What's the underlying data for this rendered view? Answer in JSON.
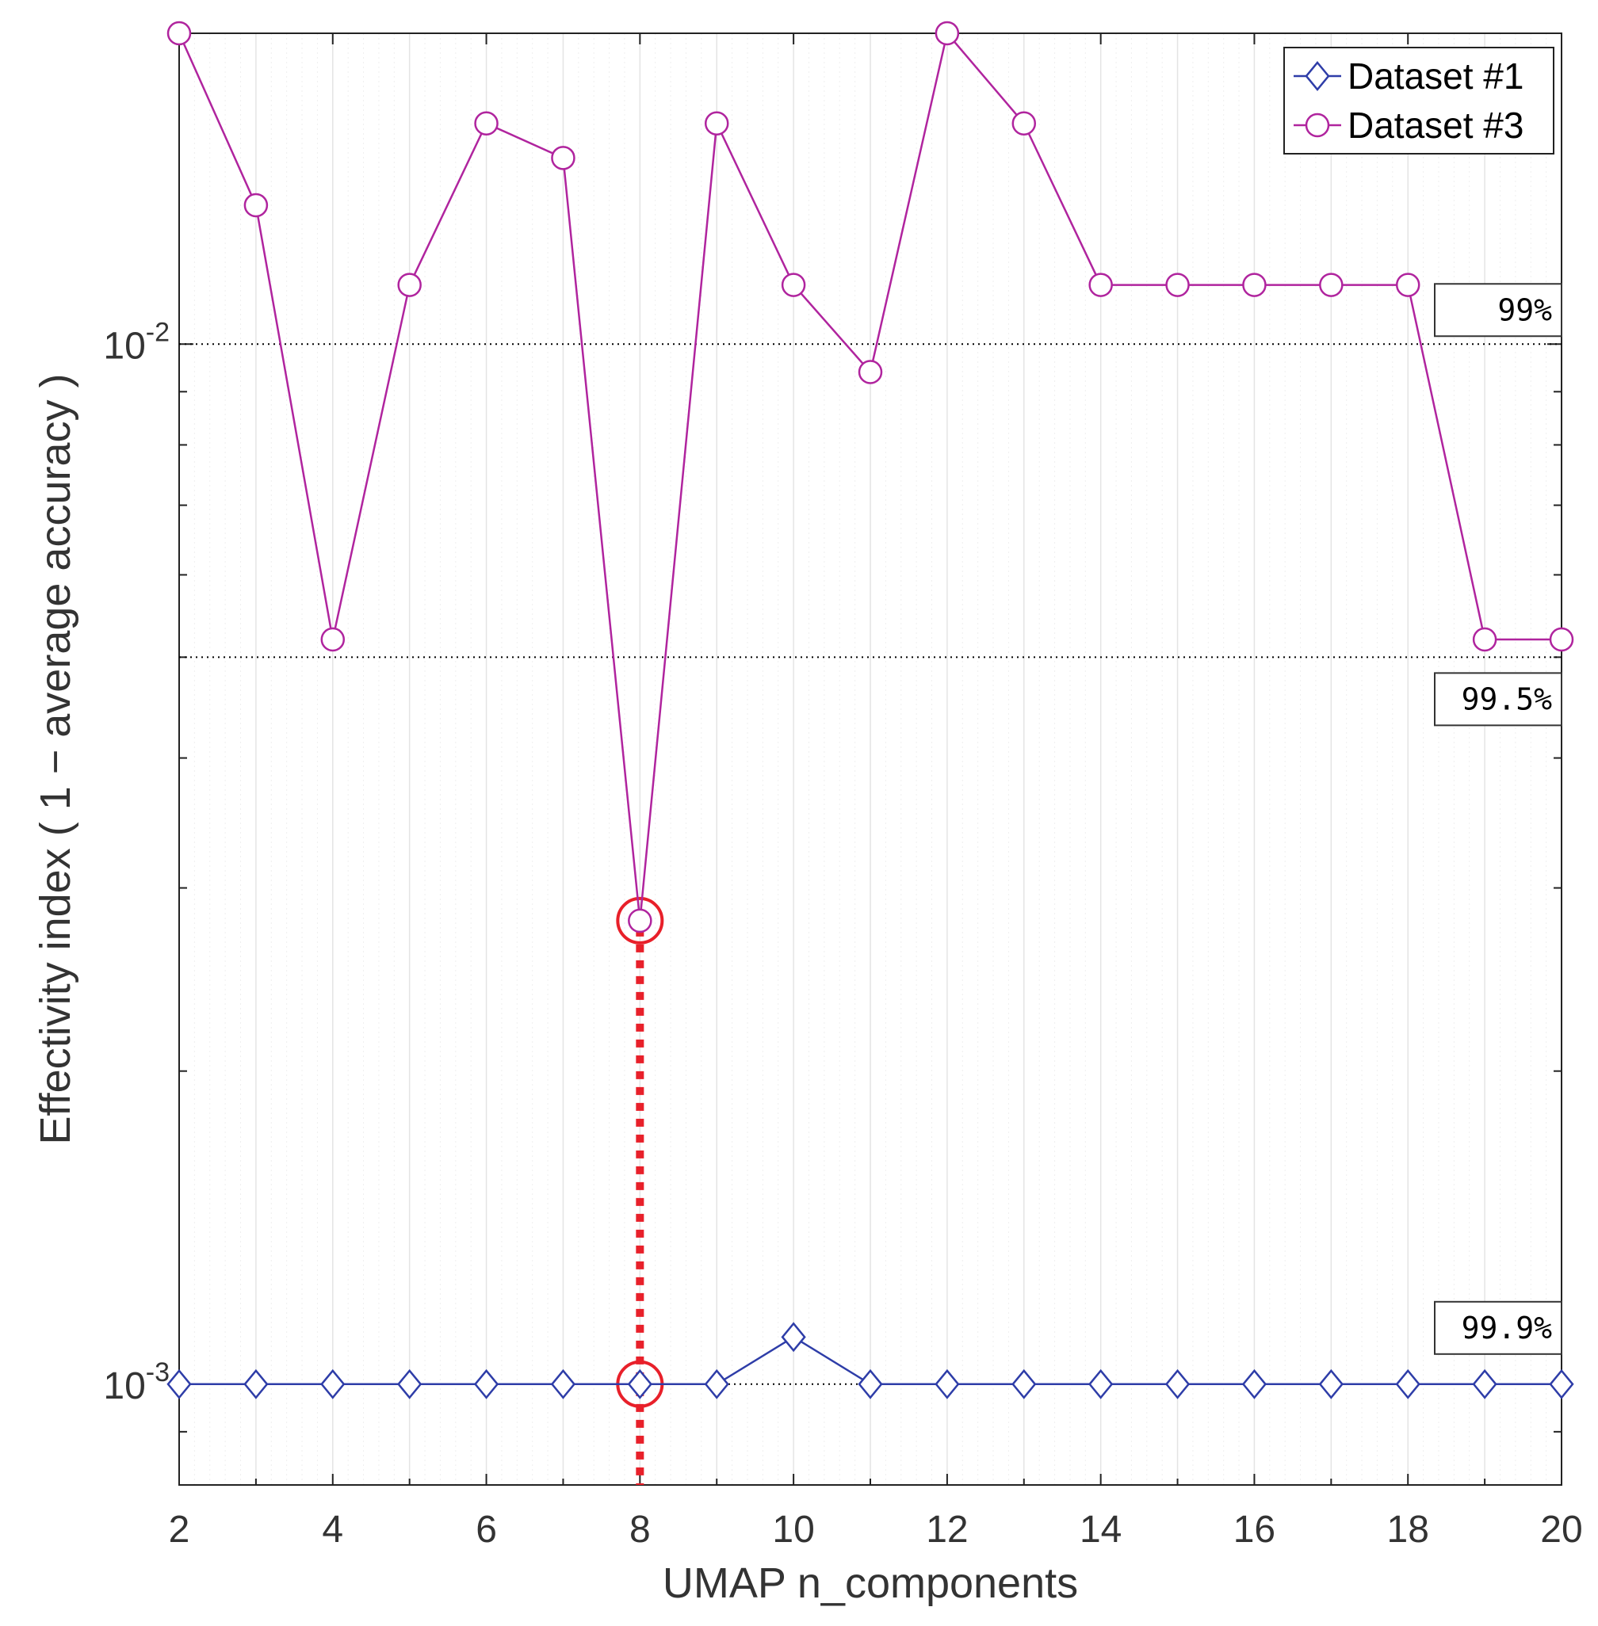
{
  "chart_data": {
    "type": "line",
    "title": "",
    "xlabel": "UMAP n_components",
    "ylabel": "Effectivity index ( 1 − average accuracy )",
    "yscale": "log",
    "xlim": [
      2,
      20
    ],
    "ylim": [
      0.0008,
      0.0199
    ],
    "xticks": [
      2,
      4,
      6,
      8,
      10,
      12,
      14,
      16,
      18,
      20
    ],
    "yticks": [
      {
        "value": 0.001,
        "base": "10",
        "exp": "-3"
      },
      {
        "value": 0.01,
        "base": "10",
        "exp": "-2"
      }
    ],
    "grid": true,
    "legend_position": "top-right",
    "colors": {
      "dataset1": "#2E3DA8",
      "dataset3": "#B0249E",
      "highlight": "#E8202A",
      "reference": "#000000"
    },
    "series": [
      {
        "name": "Dataset #1",
        "marker": "diamond",
        "x": [
          2,
          3,
          4,
          5,
          6,
          7,
          8,
          9,
          10,
          11,
          12,
          13,
          14,
          15,
          16,
          17,
          18,
          19,
          20
        ],
        "values": [
          0.001,
          0.001,
          0.001,
          0.001,
          0.001,
          0.001,
          0.001,
          0.001,
          0.00111,
          0.001,
          0.001,
          0.001,
          0.001,
          0.001,
          0.001,
          0.001,
          0.001,
          0.001,
          0.001
        ]
      },
      {
        "name": "Dataset #3",
        "marker": "circle",
        "x": [
          2,
          3,
          4,
          5,
          6,
          7,
          8,
          9,
          10,
          11,
          12,
          13,
          14,
          15,
          16,
          17,
          18,
          19,
          20
        ],
        "values": [
          0.0199,
          0.0136,
          0.0052,
          0.0114,
          0.0163,
          0.0151,
          0.00279,
          0.0163,
          0.0114,
          0.0094,
          0.0199,
          0.0163,
          0.0114,
          0.0114,
          0.0114,
          0.0114,
          0.0114,
          0.0052,
          0.0052
        ]
      }
    ],
    "reference_lines": [
      {
        "value": 0.01,
        "label": "99%"
      },
      {
        "value": 0.005,
        "label": "99.5%"
      },
      {
        "value": 0.001,
        "label": "99.9%"
      }
    ],
    "highlight": {
      "x": 8,
      "points": [
        0.00279,
        0.001
      ]
    }
  }
}
